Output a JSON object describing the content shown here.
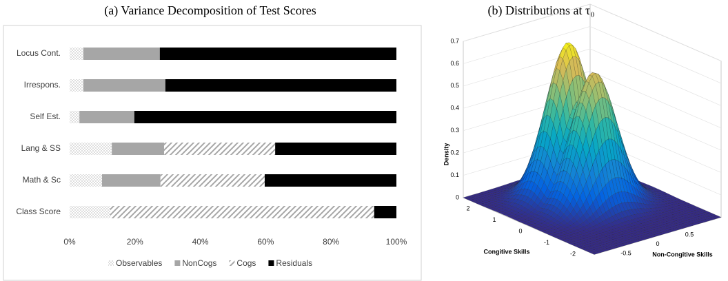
{
  "chart_data": [
    {
      "type": "bar",
      "orientation": "horizontal",
      "stacked": true,
      "title": "(a) Variance Decomposition of Test Scores",
      "categories": [
        "Locus Cont.",
        "Irrespons.",
        "Self Est.",
        "Lang & SS",
        "Math & Sc",
        "Class Score"
      ],
      "series": [
        {
          "name": "Observables",
          "color": "#8c8c8c",
          "pattern": "dots",
          "values": [
            4.2,
            4.2,
            3.0,
            12.9,
            9.9,
            12.4
          ]
        },
        {
          "name": "NonCogs",
          "color": "#a6a6a6",
          "pattern": "solid",
          "values": [
            23.4,
            25.1,
            16.8,
            16.0,
            17.9,
            0
          ]
        },
        {
          "name": "Cogs",
          "color": "#a6a6a6",
          "pattern": "hatch",
          "values": [
            0,
            0,
            0,
            34.0,
            31.9,
            80.8
          ]
        },
        {
          "name": "Residuals",
          "color": "#000000",
          "pattern": "solid",
          "values": [
            72.4,
            70.7,
            80.2,
            37.1,
            40.3,
            6.8
          ]
        }
      ],
      "xlim": [
        0,
        100
      ],
      "xticks": [
        {
          "value": 0,
          "label": "0%"
        },
        {
          "value": 20,
          "label": "20%"
        },
        {
          "value": 40,
          "label": "40%"
        },
        {
          "value": 60,
          "label": "60%"
        },
        {
          "value": 80,
          "label": "80%"
        },
        {
          "value": 100,
          "label": "100%"
        }
      ],
      "grid": false,
      "legend": "bottom"
    },
    {
      "type": "surface",
      "title": "(b) Distributions at τ₀",
      "xlabel": "Non-Congitive Skills",
      "ylabel": "Congitive Skills",
      "zlabel": "Density",
      "xlim": [
        -1,
        1
      ],
      "ylim": [
        -2.5,
        2.5
      ],
      "zlim": [
        0,
        0.7
      ],
      "xticks": [
        -0.5,
        0,
        0.5
      ],
      "yticks": [
        2,
        1,
        0,
        -1,
        -2
      ],
      "zticks": [
        0,
        0.1,
        0.2,
        0.3,
        0.4,
        0.5,
        0.6,
        0.7
      ],
      "peaks": [
        {
          "x": 0.02,
          "y": 0.95,
          "z": 0.69,
          "sx": 0.3,
          "sy": 0.5
        },
        {
          "x": 0.05,
          "y": 0.05,
          "z": 0.6,
          "sx": 0.3,
          "sy": 0.5
        }
      ],
      "colormap": "parula"
    }
  ]
}
